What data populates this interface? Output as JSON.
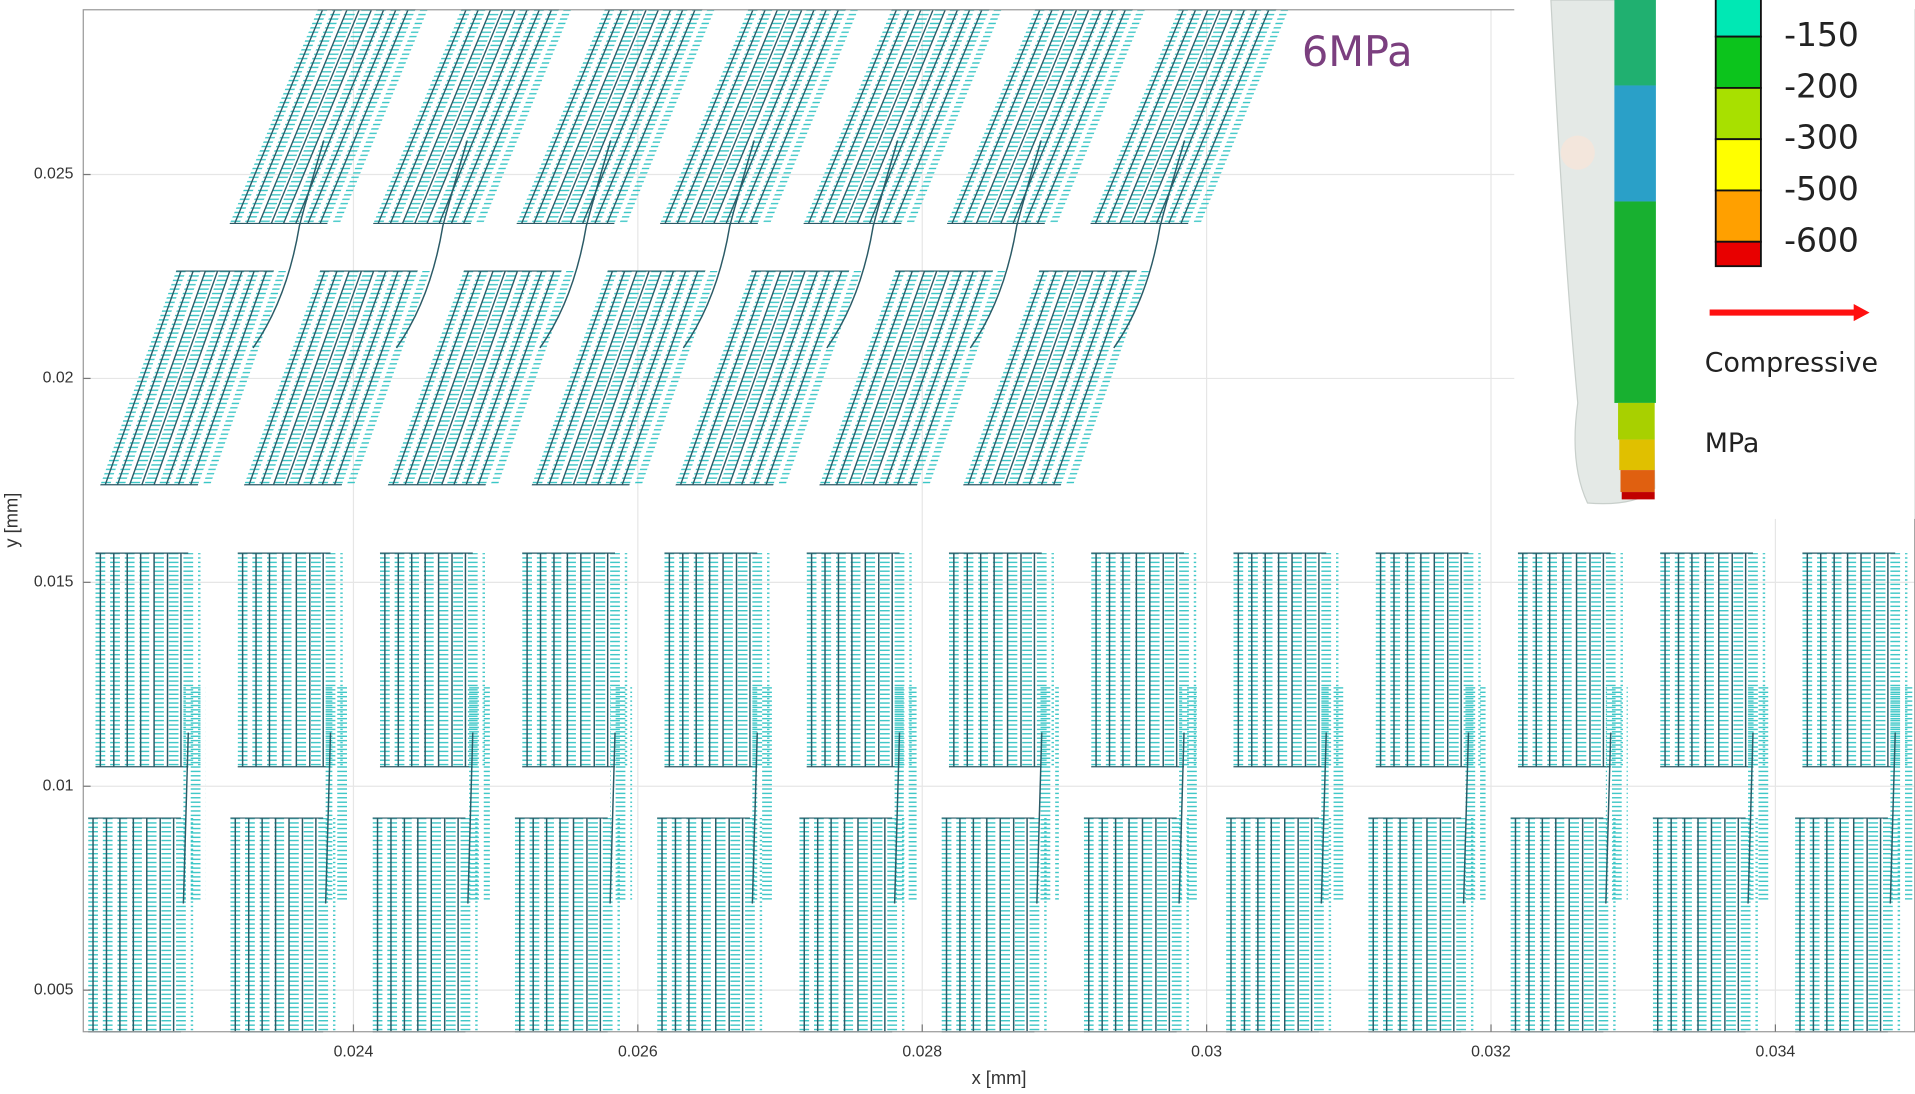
{
  "chart_data": {
    "type": "quiver",
    "x_label": "x [mm]",
    "y_label": "y [mm]",
    "xlim": [
      0.0221,
      0.03498
    ],
    "ylim": [
      0.00398,
      0.02904
    ],
    "xticks": [
      0.024,
      0.026,
      0.028,
      0.03,
      0.032,
      0.034
    ],
    "yticks": [
      0.005,
      0.01,
      0.015,
      0.02,
      0.025
    ],
    "grid": true,
    "color": "#33c4c4",
    "annotation": "6MPa",
    "annotation_color": "#7b3f7f",
    "colorbar_values": [
      -150,
      -200,
      -300,
      -500,
      -600
    ],
    "colorbar_colors": [
      "#00e8b4",
      "#0cc41c",
      "#a8e000",
      "#ffff00",
      "#ffa000",
      "#e80000"
    ],
    "arrow_color": "#ff1010",
    "legend_labels": [
      "Compressive",
      "MPa"
    ]
  }
}
